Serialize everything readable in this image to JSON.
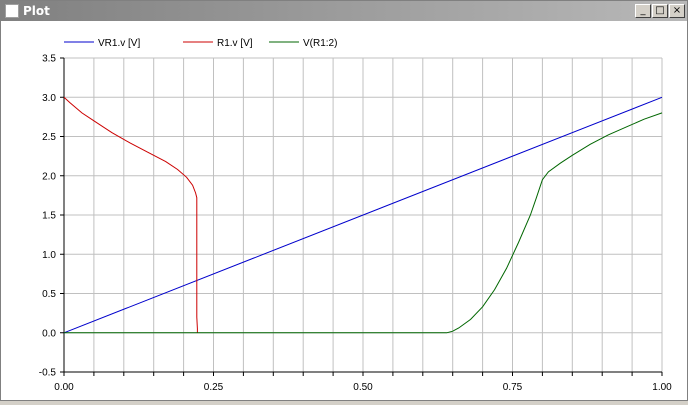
{
  "window": {
    "title": "Plot",
    "minimize": "_",
    "maximize": "□",
    "close": "×"
  },
  "colors": {
    "blue": "#0000cc",
    "red": "#cc0000",
    "green": "#006600",
    "grid": "#c0c0c0"
  },
  "chart_data": {
    "type": "line",
    "title": "",
    "xlabel": "",
    "ylabel": "",
    "xlim": [
      0,
      1
    ],
    "ylim": [
      -0.5,
      3.5
    ],
    "grid": true,
    "legend_position": "top",
    "x_ticks": [
      "0.00",
      "0.25",
      "0.50",
      "0.75",
      "1.00"
    ],
    "y_ticks": [
      "-0.5",
      "0.0",
      "0.5",
      "1.0",
      "1.5",
      "2.0",
      "2.5",
      "3.0",
      "3.5"
    ],
    "series": [
      {
        "name": "VR1.v [V]",
        "color": "#0000cc",
        "x": [
          0,
          1
        ],
        "y": [
          0,
          3
        ]
      },
      {
        "name": "R1.v [V]",
        "color": "#cc0000",
        "x": [
          0,
          0.01,
          0.03,
          0.05,
          0.08,
          0.11,
          0.14,
          0.17,
          0.19,
          0.205,
          0.215,
          0.22,
          0.222,
          0.222,
          0.223,
          0.223
        ],
        "y": [
          3.0,
          2.93,
          2.8,
          2.7,
          2.55,
          2.42,
          2.3,
          2.18,
          2.08,
          1.98,
          1.88,
          1.78,
          1.72,
          0.2,
          0.05,
          0.0
        ]
      },
      {
        "name": "V(R1:2)",
        "color": "#006600",
        "x": [
          0,
          0.64,
          0.65,
          0.66,
          0.68,
          0.7,
          0.72,
          0.74,
          0.76,
          0.78,
          0.79,
          0.8,
          0.81,
          0.83,
          0.85,
          0.88,
          0.91,
          0.94,
          0.97,
          1.0
        ],
        "y": [
          0,
          0,
          0.02,
          0.06,
          0.17,
          0.33,
          0.55,
          0.82,
          1.15,
          1.5,
          1.72,
          1.95,
          2.05,
          2.16,
          2.26,
          2.4,
          2.52,
          2.62,
          2.72,
          2.8
        ]
      }
    ]
  }
}
